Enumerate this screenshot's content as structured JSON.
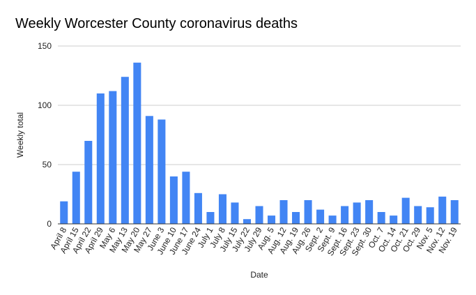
{
  "chart_data": {
    "type": "bar",
    "title": "Weekly Worcester County coronavirus deaths",
    "xlabel": "Date",
    "ylabel": "Weekly total",
    "ylim": [
      0,
      150
    ],
    "yticks": [
      0,
      50,
      100,
      150
    ],
    "grid": true,
    "legend": "none",
    "bar_color": "#4285F4",
    "grid_color": "#cccccc",
    "axis_color": "#333333",
    "categories": [
      "April 8",
      "April 15",
      "April 22",
      "April 29",
      "May 6",
      "May 13",
      "May 20",
      "May 27",
      "June 3",
      "June 10",
      "June 17",
      "June 24",
      "July 1",
      "July 8",
      "July 15",
      "July 22",
      "July 29",
      "Aug. 5",
      "Aug. 12",
      "Aug. 19",
      "Aug. 26",
      "Sept. 2",
      "Sept. 9",
      "Sept. 16",
      "Sept. 23",
      "Sept. 30",
      "Oct. 7",
      "Oct. 14",
      "Oct. 21",
      "Oct. 29",
      "Nov. 5",
      "Nov. 12",
      "Nov. 19"
    ],
    "values": [
      19,
      44,
      70,
      110,
      112,
      124,
      136,
      91,
      88,
      40,
      44,
      26,
      10,
      25,
      18,
      4,
      15,
      7,
      20,
      10,
      20,
      12,
      7,
      15,
      18,
      20,
      10,
      7,
      22,
      15,
      14,
      23,
      20
    ]
  }
}
